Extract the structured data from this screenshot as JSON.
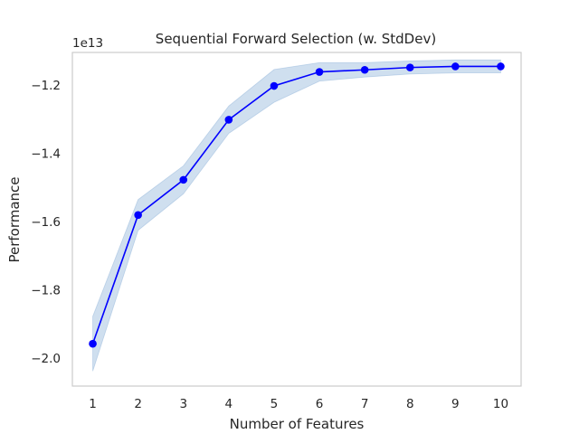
{
  "chart_data": {
    "type": "line",
    "title": "Sequential Forward Selection (w. StdDev)",
    "xlabel": "Number of Features",
    "ylabel": "Performance",
    "y_offset_label": "1e13",
    "y_scale": 10000000000000.0,
    "x": [
      1,
      2,
      3,
      4,
      5,
      6,
      7,
      8,
      9,
      10
    ],
    "series": [
      {
        "values": [
          -1.958,
          -1.581,
          -1.478,
          -1.302,
          -1.203,
          -1.162,
          -1.156,
          -1.149,
          -1.146,
          -1.146
        ],
        "std_upper": [
          -1.878,
          -1.536,
          -1.437,
          -1.262,
          -1.155,
          -1.135,
          -1.135,
          -1.13,
          -1.127,
          -1.127
        ],
        "std_lower": [
          -2.038,
          -1.626,
          -1.519,
          -1.342,
          -1.251,
          -1.189,
          -1.177,
          -1.168,
          -1.165,
          -1.165
        ]
      }
    ],
    "xticks": [
      1,
      2,
      3,
      4,
      5,
      6,
      7,
      8,
      9,
      10
    ],
    "yticks": [
      -2.0,
      -1.8,
      -1.6,
      -1.4,
      -1.2
    ],
    "ytick_labels": [
      "−2.0",
      "−1.8",
      "−1.6",
      "−1.4",
      "−1.2"
    ],
    "xlim": [
      0.55,
      10.45
    ],
    "ylim": [
      -2.082,
      -1.105
    ],
    "grid": false,
    "colors": {
      "line": "#0000ff",
      "band": "#c7d9ec",
      "frame": "#cccccc"
    }
  }
}
